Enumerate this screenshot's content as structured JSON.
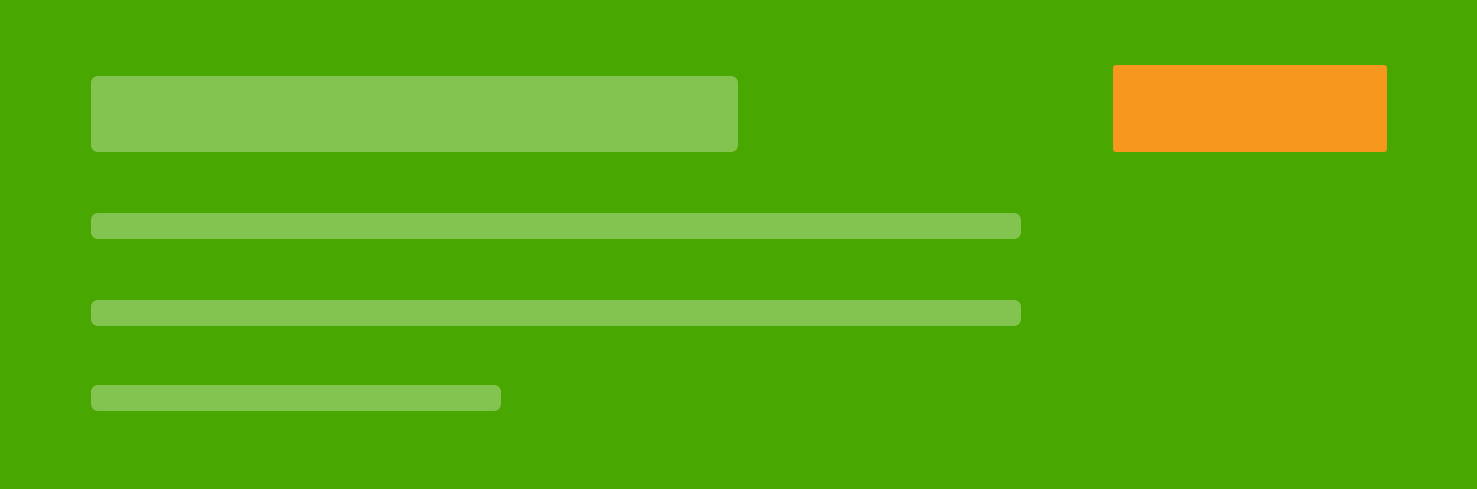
{
  "banner": {
    "background_color": "#48a700",
    "placeholder_color": "#82c44f",
    "title": "",
    "body_lines": [
      "",
      "",
      ""
    ],
    "cta": {
      "label": "",
      "color": "#f7971e"
    }
  }
}
